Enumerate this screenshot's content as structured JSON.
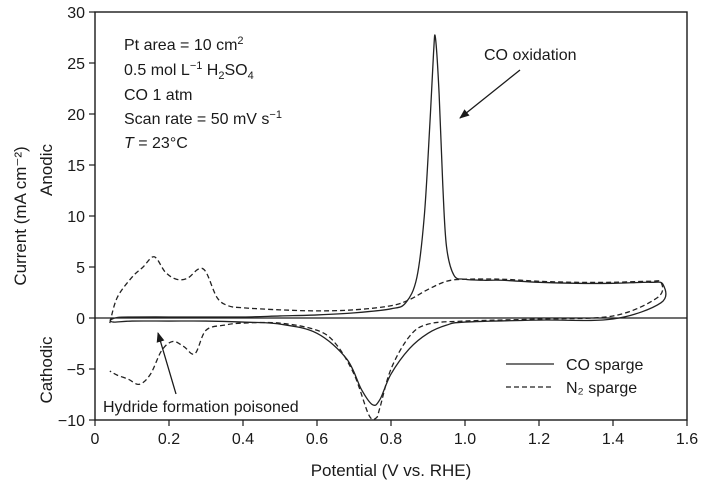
{
  "chart_data": {
    "type": "line",
    "xlabel": "Potential (V vs. RHE)",
    "ylabel": "Current (mA cm⁻²)",
    "xlim": [
      0,
      1.6
    ],
    "ylim": [
      -10,
      30
    ],
    "xticks": [
      0,
      0.2,
      0.4,
      0.6,
      0.8,
      1.0,
      1.2,
      1.4,
      1.6
    ],
    "xtick_labels": [
      "0",
      "0.2",
      "0.4",
      "0.6",
      "0.8",
      "1.0",
      "1.2",
      "1.4",
      "1.6"
    ],
    "yticks": [
      -10,
      -5,
      0,
      5,
      10,
      15,
      20,
      25,
      30
    ],
    "ytick_labels": [
      "−10",
      "−5",
      "0",
      "5",
      "10",
      "15",
      "20",
      "25",
      "30"
    ],
    "grid": false,
    "legend_position": "bottom-right",
    "side_labels": {
      "upper": "Anodic",
      "lower": "Cathodic"
    },
    "info_lines": {
      "line1": {
        "text": "Pt area = 10 cm",
        "sup": "2"
      },
      "line2": {
        "pre": "0.5 mol L",
        "sup": "−1",
        "mid": " H",
        "sub1": "2",
        "mid2": "SO",
        "sub2": "4"
      },
      "line3": "CO 1 atm",
      "line4": {
        "text": "Scan rate = 50 mV s",
        "sup": "−1"
      },
      "line5": {
        "ital": "T",
        "rest": " = 23°C"
      }
    },
    "annotations": {
      "co_oxidation": "CO oxidation",
      "hydride": "Hydride formation poisoned"
    },
    "series": [
      {
        "name": "CO sparge",
        "style": "solid",
        "color": "#222222",
        "x": [
          0.04,
          0.06,
          0.1,
          0.2,
          0.3,
          0.4,
          0.5,
          0.6,
          0.7,
          0.8,
          0.84,
          0.87,
          0.89,
          0.905,
          0.915,
          0.92,
          0.93,
          0.94,
          0.95,
          0.97,
          1.0,
          1.05,
          1.1,
          1.2,
          1.3,
          1.4,
          1.5,
          1.535,
          1.53,
          1.4,
          1.2,
          1.0,
          0.95,
          0.9,
          0.85,
          0.8,
          0.77,
          0.75,
          0.72,
          0.68,
          0.6,
          0.5,
          0.4,
          0.3,
          0.2,
          0.1,
          0.05,
          0.04
        ],
        "y": [
          -0.2,
          0.05,
          0.1,
          0.1,
          0.1,
          0.1,
          0.2,
          0.3,
          0.5,
          0.9,
          1.5,
          4,
          10,
          19,
          26,
          27.5,
          22,
          13,
          7,
          4.2,
          3.8,
          3.7,
          3.7,
          3.5,
          3.4,
          3.4,
          3.5,
          3.3,
          1.5,
          -0.1,
          -0.2,
          -0.4,
          -0.7,
          -1.5,
          -3,
          -5.5,
          -8,
          -8.5,
          -7,
          -4,
          -1.5,
          -0.6,
          -0.4,
          -0.3,
          -0.3,
          -0.3,
          -0.4,
          -0.2
        ]
      },
      {
        "name": "N₂ sparge",
        "style": "dashed",
        "color": "#222222",
        "x": [
          0.04,
          0.06,
          0.1,
          0.13,
          0.16,
          0.19,
          0.22,
          0.25,
          0.28,
          0.3,
          0.33,
          0.36,
          0.4,
          0.5,
          0.6,
          0.7,
          0.8,
          0.85,
          0.9,
          0.95,
          1.0,
          1.1,
          1.2,
          1.3,
          1.4,
          1.5,
          1.53,
          1.52,
          1.4,
          1.2,
          1.0,
          0.9,
          0.85,
          0.8,
          0.77,
          0.76,
          0.74,
          0.7,
          0.65,
          0.6,
          0.5,
          0.4,
          0.35,
          0.3,
          0.27,
          0.24,
          0.21,
          0.18,
          0.15,
          0.12,
          0.09,
          0.06,
          0.04
        ],
        "y": [
          -0.5,
          2,
          4,
          5,
          6,
          4.5,
          3.8,
          3.9,
          4.8,
          4.5,
          2,
          1.2,
          1.0,
          0.8,
          0.7,
          0.8,
          1.2,
          1.8,
          2.8,
          3.6,
          3.8,
          3.8,
          3.6,
          3.5,
          3.5,
          3.6,
          3.5,
          2,
          0.2,
          -0.1,
          -0.3,
          -0.6,
          -1.8,
          -5,
          -8.8,
          -9.8,
          -9.5,
          -5.5,
          -2.5,
          -1.2,
          -0.5,
          -0.5,
          -0.7,
          -1.2,
          -3.5,
          -2.8,
          -2.3,
          -3.2,
          -5.5,
          -6.5,
          -6.0,
          -5.6,
          -5.2
        ]
      }
    ]
  }
}
